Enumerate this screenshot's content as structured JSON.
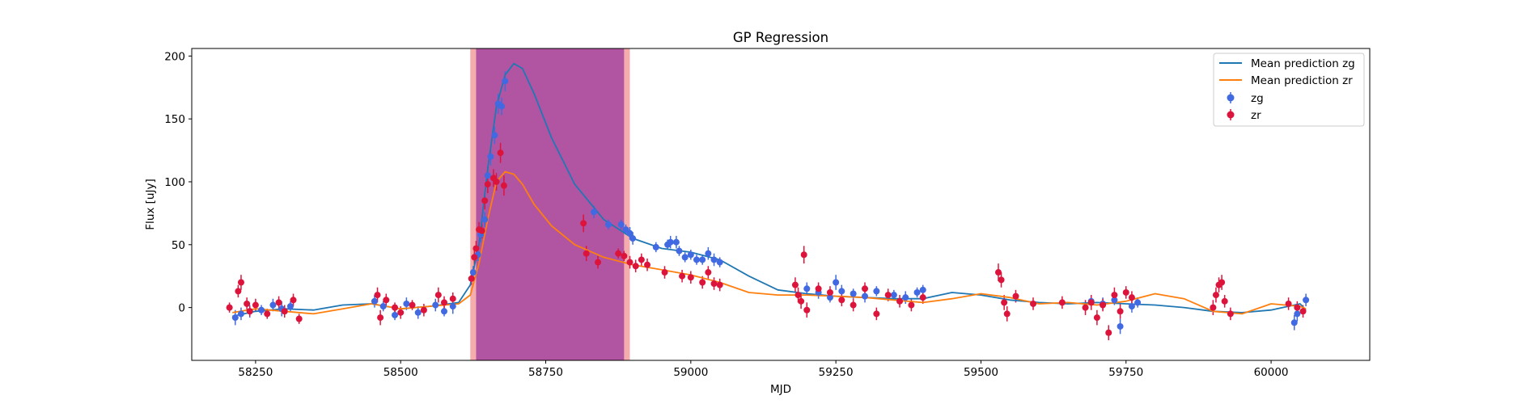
{
  "chart_data": {
    "type": "scatter",
    "title": "GP Regression",
    "xlabel": "MJD",
    "ylabel": "Flux [uJy]",
    "xlim": [
      58140,
      60170
    ],
    "ylim": [
      -42,
      206
    ],
    "xticks": [
      58250,
      58500,
      58750,
      59000,
      59250,
      59500,
      59750,
      60000
    ],
    "yticks": [
      0,
      50,
      100,
      150,
      200
    ],
    "grid": false,
    "legend_position": "top-right",
    "colors": {
      "mean_zg": "#1f77b4",
      "mean_zr": "#ff7f0e",
      "points_zg": "#4169e1",
      "points_zr": "#dc143c",
      "span_outer": "#f08080",
      "span_inner": "#a040a0"
    },
    "shaded_regions": [
      {
        "x0": 58620,
        "x1": 58895,
        "color": "#f08080",
        "opacity": 0.65
      },
      {
        "x0": 58630,
        "x1": 58885,
        "color": "#a040a0",
        "opacity": 0.8
      }
    ],
    "lines": [
      {
        "name": "Mean prediction zg",
        "color": "#1f77b4",
        "x": [
          58210,
          58250,
          58300,
          58350,
          58400,
          58450,
          58500,
          58550,
          58600,
          58620,
          58635,
          58650,
          58665,
          58680,
          58695,
          58710,
          58730,
          58760,
          58800,
          58850,
          58900,
          58950,
          59000,
          59050,
          59100,
          59150,
          59200,
          59250,
          59300,
          59350,
          59400,
          59450,
          59500,
          59550,
          59600,
          59650,
          59700,
          59750,
          59800,
          59850,
          59900,
          59950,
          60000,
          60050,
          60060
        ],
        "y": [
          -7,
          -3,
          -1,
          -2,
          2,
          3,
          -1,
          1,
          4,
          18,
          50,
          110,
          160,
          185,
          194,
          190,
          170,
          135,
          98,
          70,
          55,
          47,
          44,
          38,
          25,
          14,
          11,
          9,
          8,
          7,
          7,
          12,
          10,
          6,
          4,
          3,
          4,
          3,
          2,
          0,
          -3,
          -4,
          -2,
          3,
          -2
        ]
      },
      {
        "name": "Mean prediction zr",
        "color": "#ff7f0e",
        "x": [
          58210,
          58250,
          58300,
          58350,
          58400,
          58450,
          58500,
          58550,
          58600,
          58620,
          58635,
          58650,
          58665,
          58680,
          58695,
          58710,
          58730,
          58760,
          58800,
          58850,
          58900,
          58950,
          59000,
          59050,
          59100,
          59150,
          59200,
          59250,
          59300,
          59350,
          59400,
          59450,
          59500,
          59550,
          59600,
          59650,
          59700,
          59750,
          59800,
          59850,
          59900,
          59950,
          60000,
          60050,
          60060
        ],
        "y": [
          -4,
          -1,
          -3,
          -5,
          -1,
          3,
          -1,
          1,
          3,
          10,
          35,
          70,
          100,
          108,
          106,
          98,
          82,
          65,
          50,
          40,
          34,
          30,
          26,
          20,
          12,
          10,
          10,
          9,
          8,
          6,
          4,
          7,
          11,
          8,
          3,
          4,
          2,
          5,
          11,
          7,
          -3,
          -5,
          3,
          1,
          -1
        ]
      }
    ],
    "series": [
      {
        "name": "zg",
        "color": "#4169e1",
        "points": [
          [
            58215,
            -8,
            6
          ],
          [
            58225,
            -5,
            5
          ],
          [
            58240,
            -3,
            5
          ],
          [
            58260,
            -2,
            4
          ],
          [
            58280,
            2,
            5
          ],
          [
            58295,
            -1,
            6
          ],
          [
            58310,
            1,
            4
          ],
          [
            58455,
            5,
            5
          ],
          [
            58470,
            1,
            4
          ],
          [
            58490,
            -6,
            4
          ],
          [
            58510,
            3,
            5
          ],
          [
            58530,
            -4,
            5
          ],
          [
            58560,
            2,
            5
          ],
          [
            58575,
            -3,
            4
          ],
          [
            58590,
            1,
            6
          ],
          [
            58625,
            28,
            5
          ],
          [
            58633,
            42,
            5
          ],
          [
            58638,
            58,
            6
          ],
          [
            58645,
            70,
            6
          ],
          [
            58650,
            105,
            7
          ],
          [
            58655,
            120,
            7
          ],
          [
            58662,
            137,
            7
          ],
          [
            58668,
            162,
            8
          ],
          [
            58674,
            160,
            7
          ],
          [
            58680,
            180,
            8
          ],
          [
            58833,
            76,
            5
          ],
          [
            58858,
            66,
            4
          ],
          [
            58880,
            66,
            4
          ],
          [
            58888,
            62,
            4
          ],
          [
            58895,
            59,
            5
          ],
          [
            58900,
            55,
            5
          ],
          [
            58940,
            48,
            4
          ],
          [
            58960,
            50,
            4
          ],
          [
            58965,
            52,
            5
          ],
          [
            58975,
            52,
            5
          ],
          [
            58980,
            45,
            4
          ],
          [
            58990,
            40,
            4
          ],
          [
            59000,
            42,
            4
          ],
          [
            59010,
            38,
            4
          ],
          [
            59020,
            38,
            4
          ],
          [
            59030,
            43,
            5
          ],
          [
            59040,
            38,
            5
          ],
          [
            59050,
            36,
            4
          ],
          [
            59200,
            15,
            5
          ],
          [
            59220,
            12,
            5
          ],
          [
            59240,
            8,
            4
          ],
          [
            59250,
            20,
            6
          ],
          [
            59260,
            13,
            5
          ],
          [
            59280,
            11,
            4
          ],
          [
            59300,
            9,
            5
          ],
          [
            59320,
            13,
            4
          ],
          [
            59350,
            10,
            4
          ],
          [
            59370,
            8,
            5
          ],
          [
            59390,
            12,
            4
          ],
          [
            59400,
            14,
            4
          ],
          [
            59690,
            5,
            5
          ],
          [
            59710,
            3,
            5
          ],
          [
            59730,
            6,
            4
          ],
          [
            59740,
            -15,
            6
          ],
          [
            59760,
            1,
            5
          ],
          [
            59770,
            4,
            4
          ],
          [
            60040,
            -12,
            6
          ],
          [
            60045,
            -5,
            6
          ],
          [
            60060,
            6,
            5
          ]
        ]
      },
      {
        "name": "zr",
        "color": "#dc143c",
        "points": [
          [
            58205,
            0,
            4
          ],
          [
            58220,
            13,
            5
          ],
          [
            58225,
            20,
            6
          ],
          [
            58235,
            3,
            5
          ],
          [
            58240,
            -3,
            4
          ],
          [
            58250,
            2,
            5
          ],
          [
            58270,
            -5,
            4
          ],
          [
            58290,
            4,
            5
          ],
          [
            58300,
            -3,
            5
          ],
          [
            58315,
            6,
            5
          ],
          [
            58325,
            -9,
            4
          ],
          [
            58460,
            10,
            6
          ],
          [
            58465,
            -8,
            6
          ],
          [
            58475,
            6,
            5
          ],
          [
            58490,
            0,
            4
          ],
          [
            58500,
            -4,
            5
          ],
          [
            58520,
            2,
            4
          ],
          [
            58540,
            -2,
            5
          ],
          [
            58565,
            10,
            6
          ],
          [
            58575,
            4,
            5
          ],
          [
            58590,
            7,
            5
          ],
          [
            58622,
            23,
            5
          ],
          [
            58627,
            40,
            6
          ],
          [
            58630,
            47,
            6
          ],
          [
            58635,
            62,
            6
          ],
          [
            58640,
            61,
            6
          ],
          [
            58645,
            85,
            7
          ],
          [
            58650,
            98,
            7
          ],
          [
            58660,
            103,
            7
          ],
          [
            58665,
            100,
            7
          ],
          [
            58672,
            123,
            8
          ],
          [
            58678,
            97,
            8
          ],
          [
            58815,
            67,
            7
          ],
          [
            58820,
            43,
            6
          ],
          [
            58840,
            36,
            5
          ],
          [
            58875,
            43,
            4
          ],
          [
            58885,
            41,
            4
          ],
          [
            58895,
            36,
            5
          ],
          [
            58905,
            33,
            5
          ],
          [
            58915,
            38,
            5
          ],
          [
            58925,
            34,
            5
          ],
          [
            58955,
            28,
            5
          ],
          [
            58985,
            25,
            5
          ],
          [
            59000,
            24,
            5
          ],
          [
            59020,
            20,
            5
          ],
          [
            59030,
            28,
            5
          ],
          [
            59040,
            19,
            5
          ],
          [
            59050,
            18,
            5
          ],
          [
            59180,
            18,
            6
          ],
          [
            59185,
            10,
            6
          ],
          [
            59190,
            5,
            6
          ],
          [
            59195,
            42,
            7
          ],
          [
            59200,
            -2,
            6
          ],
          [
            59220,
            15,
            5
          ],
          [
            59240,
            12,
            5
          ],
          [
            59260,
            6,
            5
          ],
          [
            59280,
            2,
            5
          ],
          [
            59300,
            15,
            5
          ],
          [
            59320,
            -5,
            5
          ],
          [
            59340,
            10,
            5
          ],
          [
            59360,
            5,
            5
          ],
          [
            59380,
            2,
            5
          ],
          [
            59400,
            8,
            5
          ],
          [
            59530,
            28,
            7
          ],
          [
            59535,
            22,
            6
          ],
          [
            59540,
            4,
            6
          ],
          [
            59545,
            -5,
            6
          ],
          [
            59560,
            9,
            5
          ],
          [
            59590,
            3,
            5
          ],
          [
            59640,
            4,
            5
          ],
          [
            59680,
            0,
            6
          ],
          [
            59690,
            4,
            6
          ],
          [
            59700,
            -8,
            6
          ],
          [
            59710,
            2,
            5
          ],
          [
            59720,
            -20,
            6
          ],
          [
            59730,
            10,
            6
          ],
          [
            59740,
            -3,
            6
          ],
          [
            59750,
            12,
            5
          ],
          [
            59760,
            8,
            5
          ],
          [
            59900,
            0,
            6
          ],
          [
            59905,
            10,
            6
          ],
          [
            59910,
            18,
            6
          ],
          [
            59915,
            20,
            6
          ],
          [
            59920,
            5,
            5
          ],
          [
            59930,
            -5,
            5
          ],
          [
            60030,
            3,
            5
          ],
          [
            60045,
            0,
            5
          ],
          [
            60055,
            -3,
            5
          ]
        ]
      }
    ],
    "legend": [
      "Mean prediction zg",
      "Mean prediction zr",
      "zg",
      "zr"
    ]
  }
}
